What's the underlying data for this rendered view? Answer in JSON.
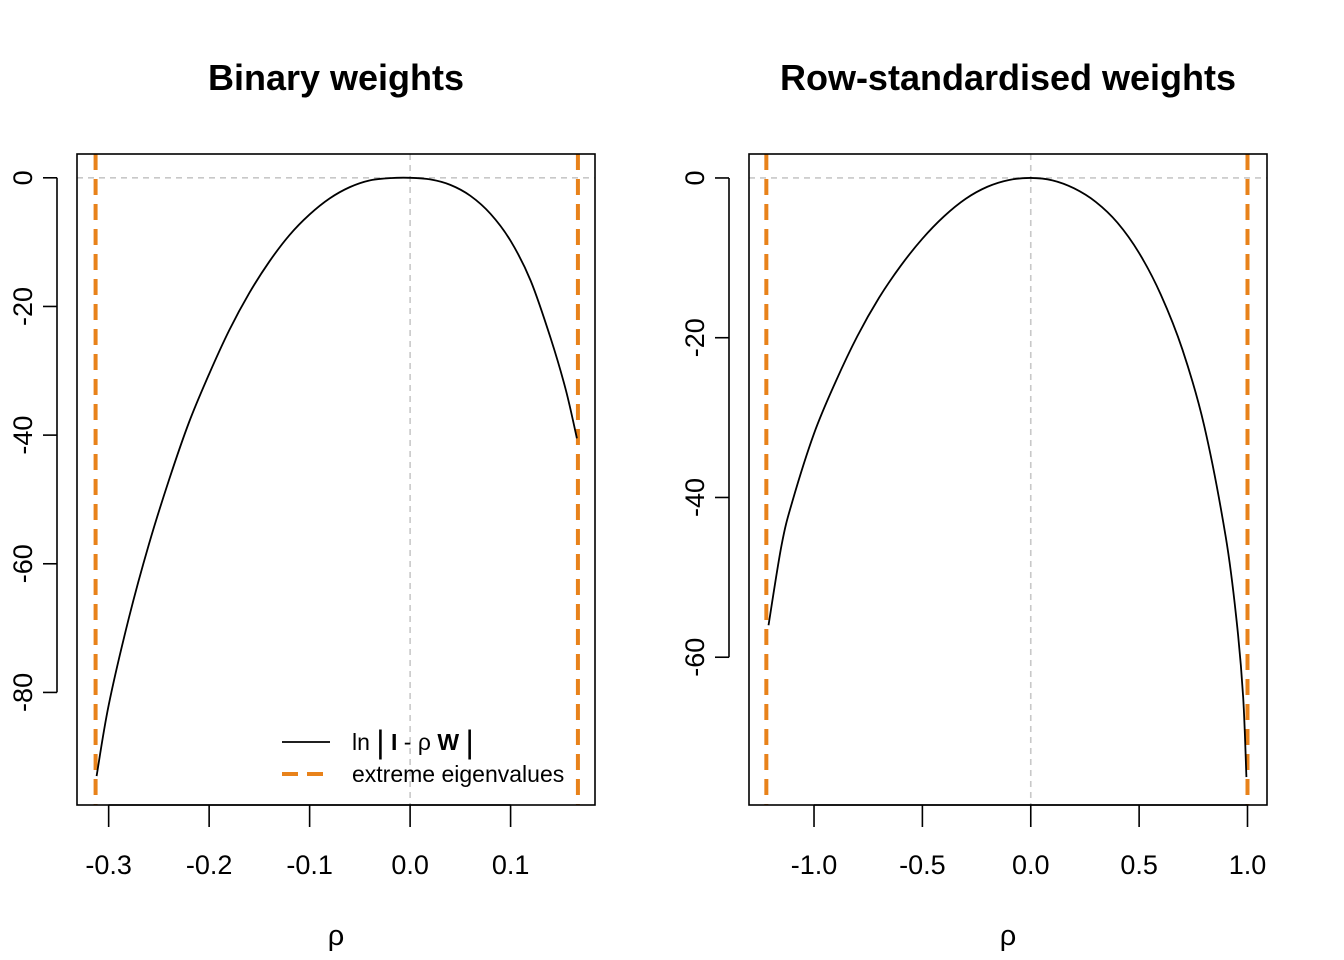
{
  "chart_data": [
    {
      "type": "line",
      "title": "Binary weights",
      "xlabel": "ρ",
      "ylabel": "",
      "xlim": [
        -0.3315,
        0.184
      ],
      "ylim": [
        -97.5,
        3.7
      ],
      "x_ticks": [
        -0.3,
        -0.2,
        -0.1,
        0.0,
        0.1
      ],
      "x_tick_labels": [
        "-0.3",
        "-0.2",
        "-0.1",
        "0.0",
        "0.1"
      ],
      "y_ticks": [
        0,
        -20,
        -40,
        -60,
        -80
      ],
      "y_tick_labels": [
        "0",
        "-20",
        "-40",
        "-60",
        "-80"
      ],
      "reference_lines": {
        "h": 0,
        "v": 0,
        "color": "#c8c8c8"
      },
      "extreme_eigenvalues": [
        -0.313,
        0.167
      ],
      "series": [
        {
          "name": "ln|I - ρW|",
          "x": [
            -0.312,
            -0.3,
            -0.28,
            -0.26,
            -0.24,
            -0.22,
            -0.2,
            -0.18,
            -0.16,
            -0.14,
            -0.12,
            -0.1,
            -0.08,
            -0.06,
            -0.04,
            -0.02,
            0.0,
            0.02,
            0.04,
            0.06,
            0.08,
            0.1,
            0.12,
            0.14,
            0.155,
            0.166
          ],
          "y": [
            -93.0,
            -82.0,
            -68.5,
            -57.0,
            -47.0,
            -38.0,
            -30.5,
            -23.7,
            -17.9,
            -13.0,
            -8.9,
            -5.7,
            -3.2,
            -1.45,
            -0.4,
            -0.05,
            0.0,
            -0.25,
            -1.1,
            -2.8,
            -5.6,
            -9.8,
            -16.0,
            -25.0,
            -33.0,
            -40.5
          ]
        }
      ],
      "legend": {
        "position": "bottom-right",
        "entries": [
          {
            "label_parts": [
              "ln",
              "|",
              "I",
              " - ",
              "ρ",
              "W",
              "|"
            ],
            "style": "solid",
            "color": "#000000"
          },
          {
            "label": "extreme eigenvalues",
            "style": "dashed",
            "color": "#E8821A"
          }
        ]
      }
    },
    {
      "type": "line",
      "title": "Row-standardised weights",
      "xlabel": "ρ",
      "ylabel": "",
      "xlim": [
        -1.3,
        1.09
      ],
      "ylim": [
        -78.5,
        3.0
      ],
      "x_ticks": [
        -1.0,
        -0.5,
        0.0,
        0.5,
        1.0
      ],
      "x_tick_labels": [
        "-1.0",
        "-0.5",
        "0.0",
        "0.5",
        "1.0"
      ],
      "y_ticks": [
        0,
        -20,
        -40,
        -60
      ],
      "y_tick_labels": [
        "0",
        "-20",
        "-40",
        "-60"
      ],
      "reference_lines": {
        "h": 0,
        "v": 0,
        "color": "#c8c8c8"
      },
      "extreme_eigenvalues": [
        -1.22,
        1.0
      ],
      "series": [
        {
          "name": "ln|I - ρW|",
          "x": [
            -1.21,
            -1.15,
            -1.1,
            -1.0,
            -0.9,
            -0.8,
            -0.7,
            -0.6,
            -0.5,
            -0.4,
            -0.3,
            -0.2,
            -0.1,
            0.0,
            0.1,
            0.2,
            0.3,
            0.4,
            0.5,
            0.6,
            0.7,
            0.8,
            0.9,
            0.95,
            0.98,
            0.995
          ],
          "y": [
            -56.0,
            -46.0,
            -40.5,
            -32.0,
            -25.5,
            -19.8,
            -15.0,
            -11.0,
            -7.6,
            -4.8,
            -2.6,
            -1.1,
            -0.25,
            0.0,
            -0.3,
            -1.3,
            -3.0,
            -5.6,
            -9.4,
            -14.6,
            -21.5,
            -31.0,
            -45.0,
            -55.5,
            -65.0,
            -75.0
          ]
        }
      ]
    }
  ]
}
